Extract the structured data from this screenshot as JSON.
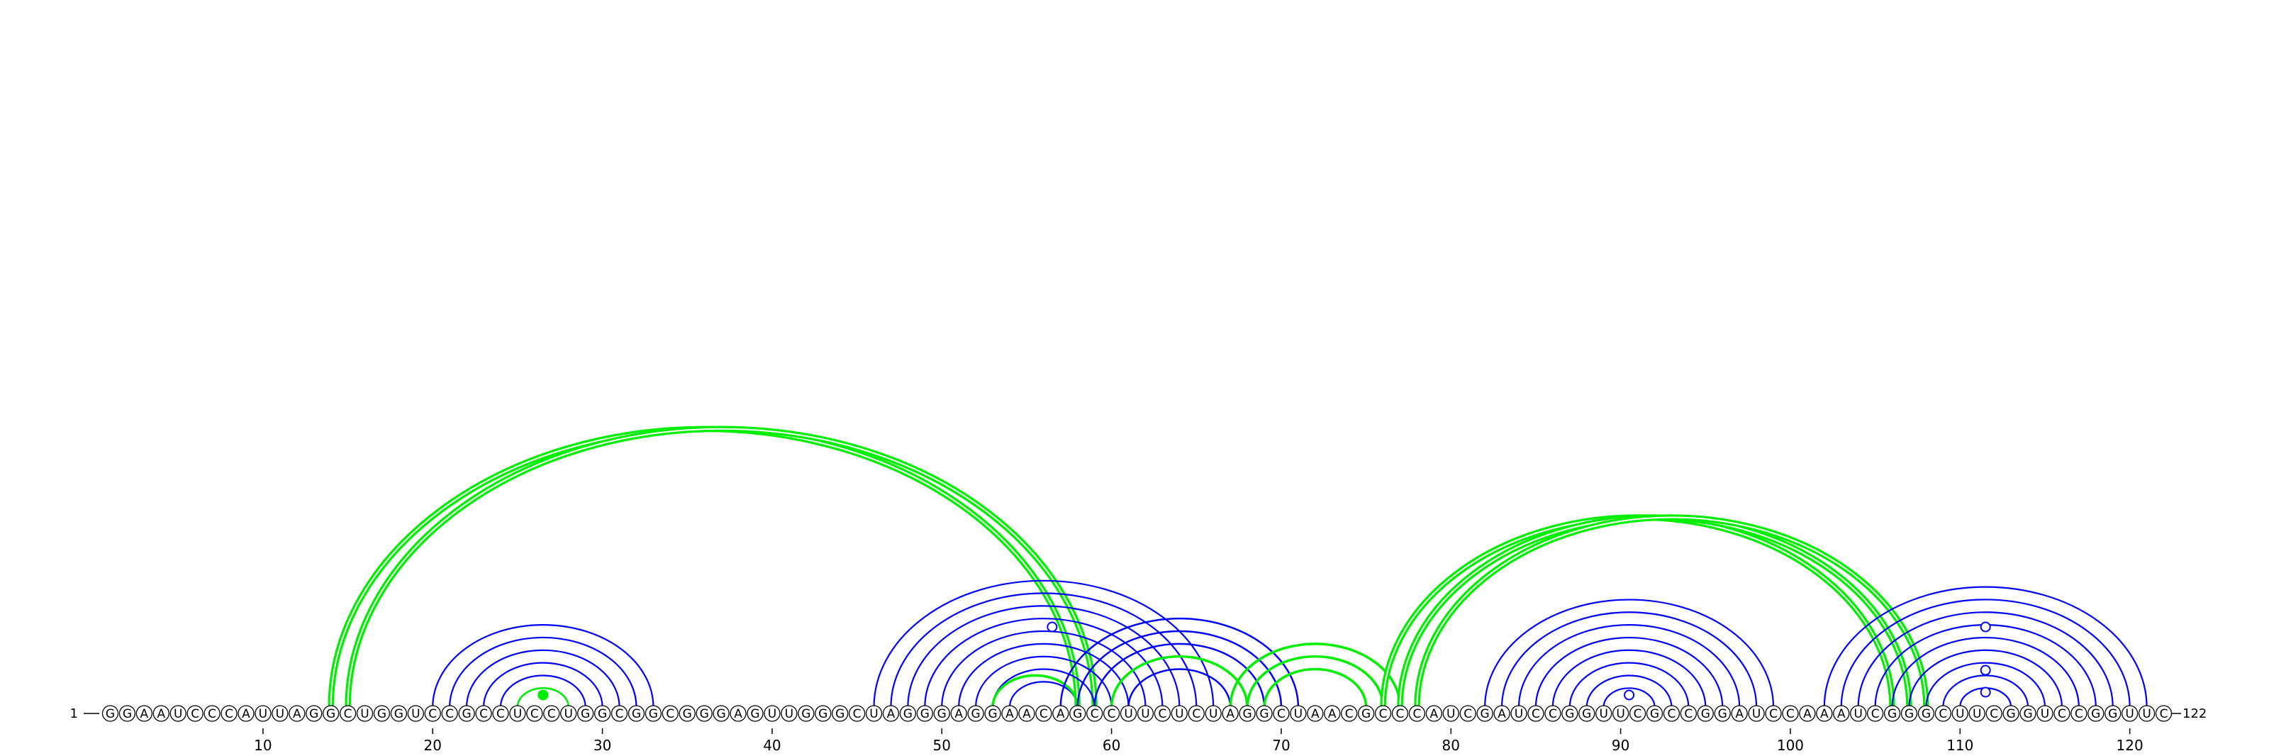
{
  "sequence": "GGAAUCCCAUUAGGCUGGUCCGCCUCCUGGCGGCGGGAGUUGGGCUAGGGAGGAACAGCCUUCUCUAGGCUAACGCCCAUCGAUCCGGUUCGCCGGAUCCAAAUCGGGCUUCGGUCCGGUUC",
  "length": 122,
  "start_label": "1",
  "end_label": "122",
  "tick_positions": [
    10,
    20,
    30,
    40,
    50,
    60,
    70,
    80,
    90,
    100,
    110,
    120
  ],
  "tick_labels": [
    "10",
    "20",
    "30",
    "40",
    "50",
    "60",
    "70",
    "80",
    "90",
    "100",
    "110",
    "120"
  ],
  "colors": {
    "blue": "#0000ff",
    "green": "#00ee00",
    "nucleotide_stroke": "#000000"
  },
  "arc_helices": [
    {
      "color": "blue",
      "width": 2.2,
      "pairs": [
        [
          20,
          33
        ],
        [
          21,
          32
        ],
        [
          22,
          31
        ],
        [
          23,
          30
        ],
        [
          24,
          29
        ],
        [
          25,
          28
        ]
      ]
    },
    {
      "color": "green",
      "width": 2.5,
      "pairs": [
        [
          25,
          28
        ]
      ]
    },
    {
      "color": "green",
      "width": 4.5,
      "double": true,
      "pairs": [
        [
          14,
          58
        ],
        [
          15,
          59
        ]
      ]
    },
    {
      "color": "blue",
      "width": 2.2,
      "pairs": [
        [
          46,
          66
        ],
        [
          47,
          65
        ],
        [
          48,
          64
        ],
        [
          49,
          63
        ],
        [
          50,
          62
        ],
        [
          51,
          61
        ],
        [
          52,
          60
        ],
        [
          53,
          59
        ],
        [
          54,
          58
        ]
      ]
    },
    {
      "color": "green",
      "width": 3.5,
      "pairs": [
        [
          53,
          58
        ]
      ]
    },
    {
      "color": "blue",
      "width": 2.5,
      "pairs": [
        [
          57,
          71
        ],
        [
          58,
          70
        ],
        [
          59,
          69
        ],
        [
          60,
          68
        ],
        [
          61,
          67
        ]
      ]
    },
    {
      "color": "green",
      "width": 3.5,
      "pairs": [
        [
          60,
          68
        ]
      ]
    },
    {
      "color": "green",
      "width": 3.5,
      "pairs": [
        [
          67,
          77
        ],
        [
          68,
          76
        ],
        [
          69,
          75
        ]
      ]
    },
    {
      "color": "green",
      "width": 4.5,
      "double": true,
      "pairs": [
        [
          76,
          106
        ],
        [
          77,
          107
        ],
        [
          78,
          108
        ]
      ]
    },
    {
      "color": "blue",
      "width": 2.2,
      "pairs": [
        [
          82,
          99
        ],
        [
          83,
          98
        ],
        [
          84,
          97
        ],
        [
          85,
          96
        ],
        [
          86,
          95
        ],
        [
          87,
          94
        ],
        [
          88,
          93
        ],
        [
          89,
          92
        ]
      ]
    },
    {
      "color": "blue",
      "width": 2.2,
      "pairs": [
        [
          102,
          121
        ],
        [
          103,
          120
        ],
        [
          104,
          119
        ],
        [
          105,
          118
        ],
        [
          106,
          117
        ],
        [
          107,
          116
        ],
        [
          108,
          115
        ],
        [
          109,
          114
        ],
        [
          110,
          113
        ]
      ]
    }
  ],
  "markers": [
    {
      "pos": 26.5,
      "height": 26,
      "filled": true,
      "color": "green"
    },
    {
      "pos": 56.5,
      "height": 122,
      "filled": false,
      "color": "blue"
    },
    {
      "pos": 90.5,
      "height": 26,
      "filled": false,
      "color": "blue"
    },
    {
      "pos": 111.5,
      "height": 30,
      "filled": false,
      "color": "blue"
    },
    {
      "pos": 111.5,
      "height": 61,
      "filled": false,
      "color": "blue"
    },
    {
      "pos": 111.5,
      "height": 122,
      "filled": false,
      "color": "blue"
    }
  ]
}
